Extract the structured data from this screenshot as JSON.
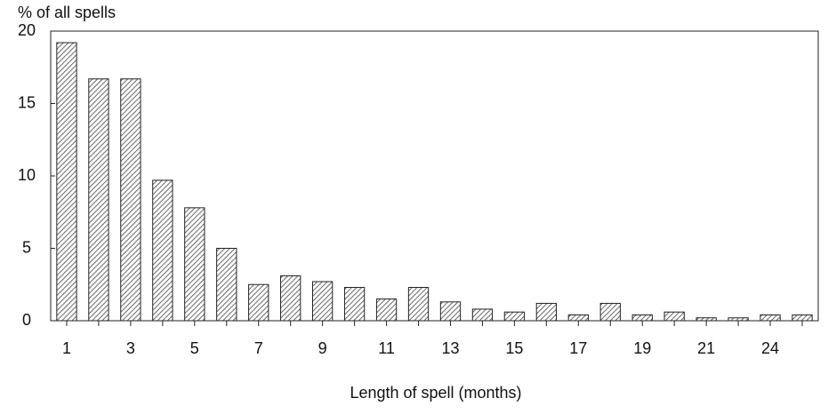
{
  "chart_data": {
    "type": "bar",
    "ylabel": "% of all spells",
    "xlabel": "Length of spell (months)",
    "categories": [
      "1",
      null,
      "3",
      null,
      "5",
      null,
      "7",
      null,
      "9",
      null,
      "11",
      null,
      "13",
      null,
      "15",
      null,
      "17",
      null,
      "19",
      null,
      "21",
      null,
      "24",
      null
    ],
    "values": [
      19.2,
      16.7,
      16.7,
      9.7,
      7.8,
      5.0,
      2.5,
      3.1,
      2.7,
      2.3,
      1.5,
      2.3,
      1.3,
      0.8,
      0.6,
      1.2,
      0.4,
      1.2,
      0.4,
      0.6,
      0.2,
      0.2,
      0.4,
      0.4
    ],
    "color": "#444444",
    "ylim": [
      0,
      20
    ],
    "yticks": [
      0,
      5,
      10,
      15,
      20
    ],
    "grid": false
  }
}
